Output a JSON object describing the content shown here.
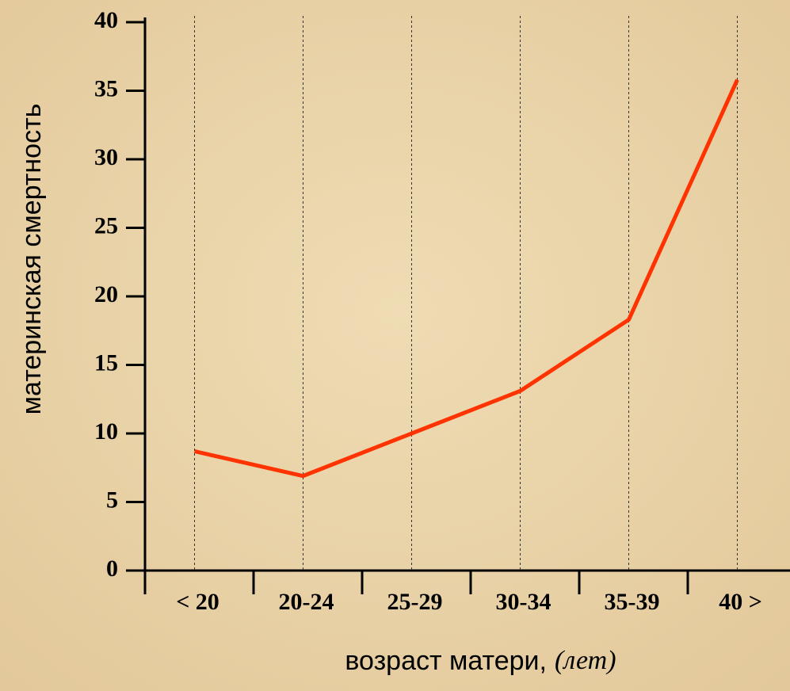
{
  "chart_data": {
    "type": "line",
    "y_label": "материнская смертность",
    "x_label": "возраст матери,",
    "x_label_unit": "(лет)",
    "categories": [
      "< 20",
      "20-24",
      "25-29",
      "30-34",
      "35-39",
      "40 >"
    ],
    "series": [
      {
        "color": "#ff3300",
        "values": [
          8.7,
          6.9,
          10.0,
          13.1,
          18.3,
          35.8
        ]
      }
    ],
    "ylim": [
      0,
      40
    ],
    "yticks": [
      0,
      5,
      10,
      15,
      20,
      25,
      30,
      35,
      40
    ],
    "grid": true
  }
}
